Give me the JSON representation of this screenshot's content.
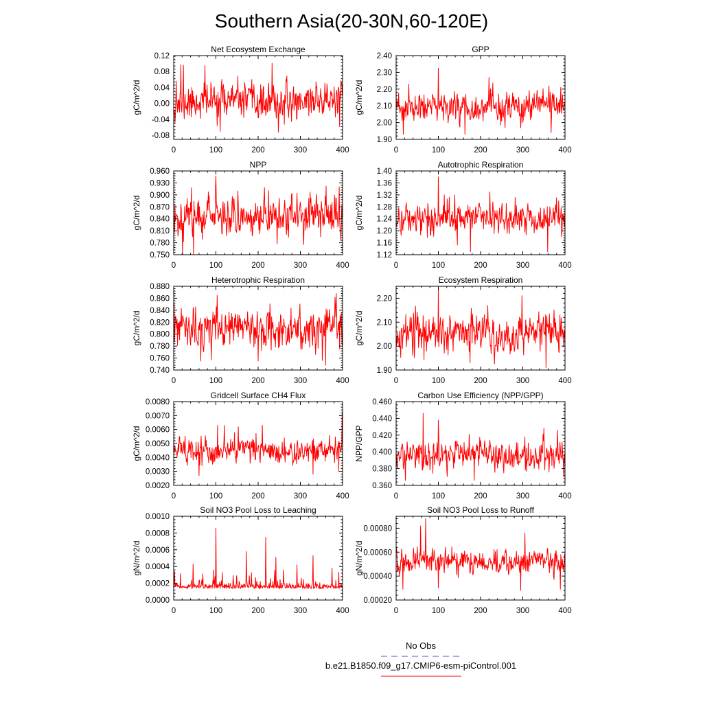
{
  "figure": {
    "title": "Southern Asia(20-30N,60-120E)",
    "legend": {
      "entries": [
        {
          "label": "No Obs",
          "color": "#4f4fd9",
          "dash": true
        },
        {
          "label": "b.e21.B1850.f09_g17.CMIP6-esm-piControl.001",
          "color": "#ff0000",
          "dash": false
        }
      ]
    },
    "line_color": "#ff0000"
  },
  "chart_data": [
    {
      "type": "line",
      "title": "Net Ecosystem Exchange",
      "xlabel": "",
      "ylabel": "gC/m^2/d",
      "xlim": [
        0,
        400
      ],
      "ylim": [
        -0.09,
        0.12
      ],
      "xticks": [
        0,
        100,
        200,
        300,
        400
      ],
      "xtick_labels": [
        "0",
        "100",
        "200",
        "300",
        "400"
      ],
      "yticks": [
        -0.08,
        -0.04,
        0.0,
        0.04,
        0.08,
        0.12
      ],
      "ytick_labels": [
        "-0.08",
        "-0.04",
        "0.00",
        "0.04",
        "0.08",
        "0.12"
      ],
      "mean": 0.005,
      "spread": 0.026,
      "seed": 11,
      "peaks": [
        [
          6,
          0.056
        ],
        [
          17,
          0.097
        ],
        [
          23,
          0.096
        ],
        [
          74,
          0.095
        ],
        [
          100,
          -0.002
        ],
        [
          233,
          0.101
        ],
        [
          396,
          0.057
        ],
        [
          393,
          -0.058
        ],
        [
          248,
          -0.072
        ],
        [
          110,
          -0.07
        ]
      ]
    },
    {
      "type": "line",
      "title": "GPP",
      "xlabel": "",
      "ylabel": "gC/m^2/d",
      "xlim": [
        0,
        400
      ],
      "ylim": [
        1.9,
        2.4
      ],
      "xticks": [
        0,
        100,
        200,
        300,
        400
      ],
      "xtick_labels": [
        "0",
        "100",
        "200",
        "300",
        "400"
      ],
      "yticks": [
        1.9,
        2.0,
        2.1,
        2.2,
        2.3,
        2.4
      ],
      "ytick_labels": [
        "1.90",
        "2.00",
        "2.10",
        "2.20",
        "2.30",
        "2.40"
      ],
      "mean": 2.09,
      "spread": 0.055,
      "seed": 23,
      "peaks": [
        [
          100,
          2.325
        ],
        [
          220,
          2.27
        ],
        [
          30,
          2.23
        ],
        [
          17,
          1.93
        ],
        [
          390,
          2.21
        ],
        [
          163,
          1.93
        ],
        [
          367,
          1.94
        ]
      ]
    },
    {
      "type": "line",
      "title": "NPP",
      "xlabel": "",
      "ylabel": "gC/m^2/d",
      "xlim": [
        0,
        400
      ],
      "ylim": [
        0.75,
        0.96
      ],
      "xticks": [
        0,
        100,
        200,
        300,
        400
      ],
      "xtick_labels": [
        "0",
        "100",
        "200",
        "300",
        "400"
      ],
      "yticks": [
        0.75,
        0.78,
        0.81,
        0.84,
        0.87,
        0.9,
        0.93,
        0.96
      ],
      "ytick_labels": [
        "0.750",
        "0.780",
        "0.810",
        "0.840",
        "0.870",
        "0.900",
        "0.930",
        "0.960"
      ],
      "mean": 0.848,
      "spread": 0.03,
      "seed": 37,
      "peaks": [
        [
          100,
          0.948
        ],
        [
          21,
          0.75
        ],
        [
          47,
          0.75
        ],
        [
          152,
          0.91
        ],
        [
          225,
          0.91
        ],
        [
          0,
          0.79
        ],
        [
          392,
          0.92
        ],
        [
          396,
          0.785
        ]
      ]
    },
    {
      "type": "line",
      "title": "Autotrophic Respiration",
      "xlabel": "",
      "ylabel": "gC/m^2/d",
      "xlim": [
        0,
        400
      ],
      "ylim": [
        1.12,
        1.4
      ],
      "xticks": [
        0,
        100,
        200,
        300,
        400
      ],
      "xtick_labels": [
        "0",
        "100",
        "200",
        "300",
        "400"
      ],
      "yticks": [
        1.12,
        1.16,
        1.2,
        1.24,
        1.28,
        1.32,
        1.36,
        1.4
      ],
      "ytick_labels": [
        "1.12",
        "1.16",
        "1.20",
        "1.24",
        "1.28",
        "1.32",
        "1.36",
        "1.40"
      ],
      "mean": 1.245,
      "spread": 0.032,
      "seed": 41,
      "peaks": [
        [
          100,
          1.38
        ],
        [
          176,
          1.13
        ],
        [
          359,
          1.13
        ],
        [
          222,
          1.33
        ],
        [
          385,
          1.3
        ],
        [
          392,
          1.18
        ]
      ]
    },
    {
      "type": "line",
      "title": "Heterotrophic Respiration",
      "xlabel": "",
      "ylabel": "gC/m^2/d",
      "xlim": [
        0,
        400
      ],
      "ylim": [
        0.74,
        0.88
      ],
      "xticks": [
        0,
        100,
        200,
        300,
        400
      ],
      "xtick_labels": [
        "0",
        "100",
        "200",
        "300",
        "400"
      ],
      "yticks": [
        0.74,
        0.76,
        0.78,
        0.8,
        0.82,
        0.84,
        0.86,
        0.88
      ],
      "ytick_labels": [
        "0.740",
        "0.760",
        "0.780",
        "0.800",
        "0.820",
        "0.840",
        "0.860",
        "0.880"
      ],
      "mean": 0.81,
      "spread": 0.02,
      "seed": 53,
      "peaks": [
        [
          103,
          0.865
        ],
        [
          360,
          0.87
        ],
        [
          385,
          0.868
        ],
        [
          64,
          0.755
        ],
        [
          200,
          0.755
        ],
        [
          360,
          0.748
        ],
        [
          393,
          0.775
        ]
      ]
    },
    {
      "type": "line",
      "title": "Ecosystem Respiration",
      "xlabel": "",
      "ylabel": "gC/m^2/d",
      "xlim": [
        0,
        400
      ],
      "ylim": [
        1.9,
        2.25
      ],
      "xticks": [
        0,
        100,
        200,
        300,
        400
      ],
      "xtick_labels": [
        "0",
        "100",
        "200",
        "300",
        "400"
      ],
      "yticks": [
        1.9,
        2.0,
        2.1,
        2.2
      ],
      "ytick_labels": [
        "1.90",
        "2.00",
        "2.10",
        "2.20"
      ],
      "mean": 2.055,
      "spread": 0.05,
      "seed": 67,
      "peaks": [
        [
          100,
          2.24
        ],
        [
          217,
          2.17
        ],
        [
          355,
          1.91
        ],
        [
          175,
          1.93
        ],
        [
          388,
          2.13
        ]
      ]
    },
    {
      "type": "line",
      "title": "Gridcell Surface CH4 Flux",
      "xlabel": "",
      "ylabel": "gC/m^2/d",
      "xlim": [
        0,
        400
      ],
      "ylim": [
        0.002,
        0.008
      ],
      "xticks": [
        0,
        100,
        200,
        300,
        400
      ],
      "xtick_labels": [
        "0",
        "100",
        "200",
        "300",
        "400"
      ],
      "yticks": [
        0.002,
        0.003,
        0.004,
        0.005,
        0.006,
        0.007,
        0.008
      ],
      "ytick_labels": [
        "0.0020",
        "0.0030",
        "0.0040",
        "0.0050",
        "0.0060",
        "0.0070",
        "0.0080"
      ],
      "mean": 0.0045,
      "spread": 0.00055,
      "seed": 79,
      "peaks": [
        [
          399,
          0.0072
        ],
        [
          104,
          0.0063
        ],
        [
          120,
          0.0063
        ],
        [
          153,
          0.0062
        ],
        [
          210,
          0.0063
        ],
        [
          60,
          0.0027
        ],
        [
          330,
          0.0028
        ],
        [
          391,
          0.003
        ]
      ]
    },
    {
      "type": "line",
      "title": "Carbon Use Efficiency (NPP/GPP)",
      "xlabel": "",
      "ylabel": "NPP/GPP",
      "xlim": [
        0,
        400
      ],
      "ylim": [
        0.36,
        0.46
      ],
      "xticks": [
        0,
        100,
        200,
        300,
        400
      ],
      "xtick_labels": [
        "0",
        "100",
        "200",
        "300",
        "400"
      ],
      "yticks": [
        0.36,
        0.38,
        0.4,
        0.42,
        0.44,
        0.46
      ],
      "ytick_labels": [
        "0.360",
        "0.380",
        "0.400",
        "0.420",
        "0.440",
        "0.460"
      ],
      "mean": 0.396,
      "spread": 0.011,
      "seed": 97,
      "peaks": [
        [
          64,
          0.446
        ],
        [
          100,
          0.438
        ],
        [
          350,
          0.428
        ],
        [
          22,
          0.366
        ],
        [
          185,
          0.366
        ],
        [
          397,
          0.37
        ]
      ]
    },
    {
      "type": "line",
      "title": "Soil NO3 Pool Loss to Leaching",
      "xlabel": "",
      "ylabel": "gN/m^2/d",
      "xlim": [
        0,
        400
      ],
      "ylim": [
        0.0,
        0.001
      ],
      "xticks": [
        0,
        100,
        200,
        300,
        400
      ],
      "xtick_labels": [
        "0",
        "100",
        "200",
        "300",
        "400"
      ],
      "yticks": [
        0.0,
        0.0002,
        0.0004,
        0.0006,
        0.0008,
        0.001
      ],
      "ytick_labels": [
        "0.0000",
        "0.0002",
        "0.0004",
        "0.0006",
        "0.0008",
        "0.0010"
      ],
      "mean": 0.00016,
      "spread": 4e-05,
      "seed": 101,
      "skew": true,
      "peaks": [
        [
          100,
          0.00086
        ],
        [
          218,
          0.00075
        ],
        [
          172,
          0.00058
        ],
        [
          242,
          0.00051
        ],
        [
          330,
          0.00053
        ],
        [
          46,
          0.00043
        ],
        [
          292,
          0.00042
        ],
        [
          375,
          0.00038
        ],
        [
          2,
          0.00034
        ],
        [
          115,
          0.00033
        ],
        [
          95,
          0.00036
        ],
        [
          260,
          0.00036
        ]
      ]
    },
    {
      "type": "line",
      "title": "Soil NO3 Pool Loss to Runoff",
      "xlabel": "",
      "ylabel": "gN/m^2/d",
      "xlim": [
        0,
        400
      ],
      "ylim": [
        0.0002,
        0.0009
      ],
      "xticks": [
        0,
        100,
        200,
        300,
        400
      ],
      "xtick_labels": [
        "0",
        "100",
        "200",
        "300",
        "400"
      ],
      "yticks": [
        0.0002,
        0.0004,
        0.0006,
        0.0008
      ],
      "ytick_labels": [
        "0.00020",
        "0.00040",
        "0.00060",
        "0.00080"
      ],
      "mean": 0.00052,
      "spread": 6.2e-05,
      "seed": 131,
      "peaks": [
        [
          70,
          0.00088
        ],
        [
          58,
          0.00082
        ],
        [
          305,
          0.00076
        ],
        [
          16,
          0.00029
        ],
        [
          295,
          0.00028
        ],
        [
          389,
          0.00029
        ],
        [
          100,
          0.0003
        ]
      ]
    }
  ]
}
